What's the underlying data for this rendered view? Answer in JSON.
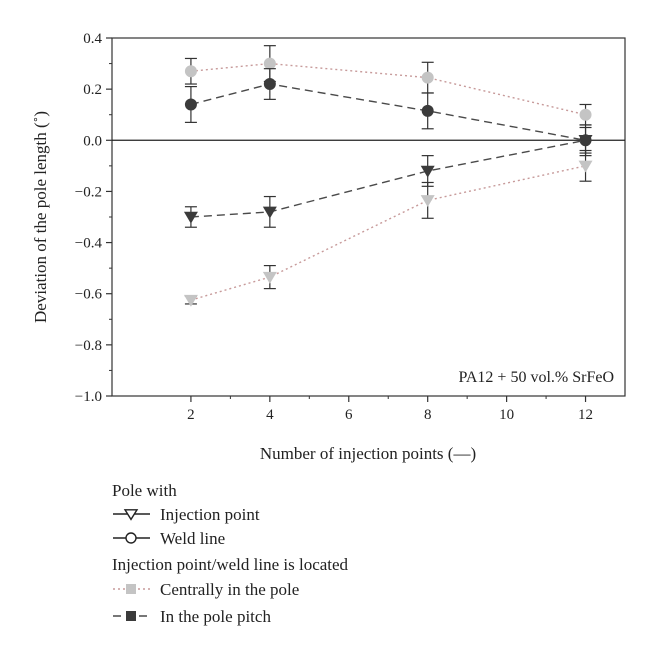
{
  "chart_data": {
    "type": "line",
    "xlabel": "Number of injection points (—)",
    "ylabel": "Deviation of the pole length (˚)",
    "xlim": [
      0,
      13
    ],
    "ylim": [
      -1.0,
      0.4
    ],
    "x_ticks": [
      2,
      4,
      6,
      8,
      10,
      12
    ],
    "y_ticks": [
      0.4,
      0.2,
      0.0,
      -0.2,
      -0.4,
      -0.6,
      -0.8,
      -1.0
    ],
    "x_tick_labels": [
      "2",
      "4",
      "6",
      "8",
      "10",
      "12"
    ],
    "y_tick_labels": [
      "0.4",
      "0.2",
      "0.0",
      "−0.2",
      "−0.4",
      "−0.6",
      "−0.8",
      "−1.0"
    ],
    "grid": false,
    "zero_line": true,
    "annotation": "PA12 + 50 vol.% SrFeO",
    "series": [
      {
        "marker": "circle",
        "line": "dotted",
        "color": "#c4c4c4",
        "line_color": "#c79a9a",
        "x": [
          2,
          4,
          8,
          12
        ],
        "y": [
          0.27,
          0.3,
          0.245,
          0.1
        ],
        "err": [
          0.05,
          0.07,
          0.06,
          0.04
        ]
      },
      {
        "marker": "circle",
        "line": "dashed",
        "color": "#3b3b3b",
        "line_color": "#4a4a4a",
        "x": [
          2,
          4,
          8,
          12
        ],
        "y": [
          0.14,
          0.22,
          0.115,
          0.0
        ],
        "err": [
          0.07,
          0.06,
          0.07,
          0.06
        ]
      },
      {
        "marker": "triangle-down",
        "line": "dashed",
        "color": "#3b3b3b",
        "line_color": "#4a4a4a",
        "x": [
          2,
          4,
          8,
          12
        ],
        "y": [
          -0.3,
          -0.28,
          -0.12,
          0.0
        ],
        "err": [
          0.04,
          0.06,
          0.06,
          0.05
        ]
      },
      {
        "marker": "triangle-down",
        "line": "dotted",
        "color": "#c4c4c4",
        "line_color": "#c79a9a",
        "x": [
          2,
          4,
          8,
          12
        ],
        "y": [
          -0.625,
          -0.535,
          -0.235,
          -0.1
        ],
        "err": [
          0.015,
          0.045,
          0.07,
          0.06
        ]
      }
    ],
    "legend": {
      "position": "below",
      "title1": "Pole with",
      "marker_items": [
        {
          "label": "Injection point",
          "marker": "triangle-down"
        },
        {
          "label": "Weld line",
          "marker": "circle"
        }
      ],
      "title2": "Injection point/weld line is located",
      "line_items": [
        {
          "label": "Centrally in the pole",
          "style": "dotted",
          "color": "#c4c4c4",
          "line_color": "#c79a9a"
        },
        {
          "label": "In the pole pitch",
          "style": "dashed",
          "color": "#3b3b3b",
          "line_color": "#4a4a4a"
        }
      ]
    }
  }
}
